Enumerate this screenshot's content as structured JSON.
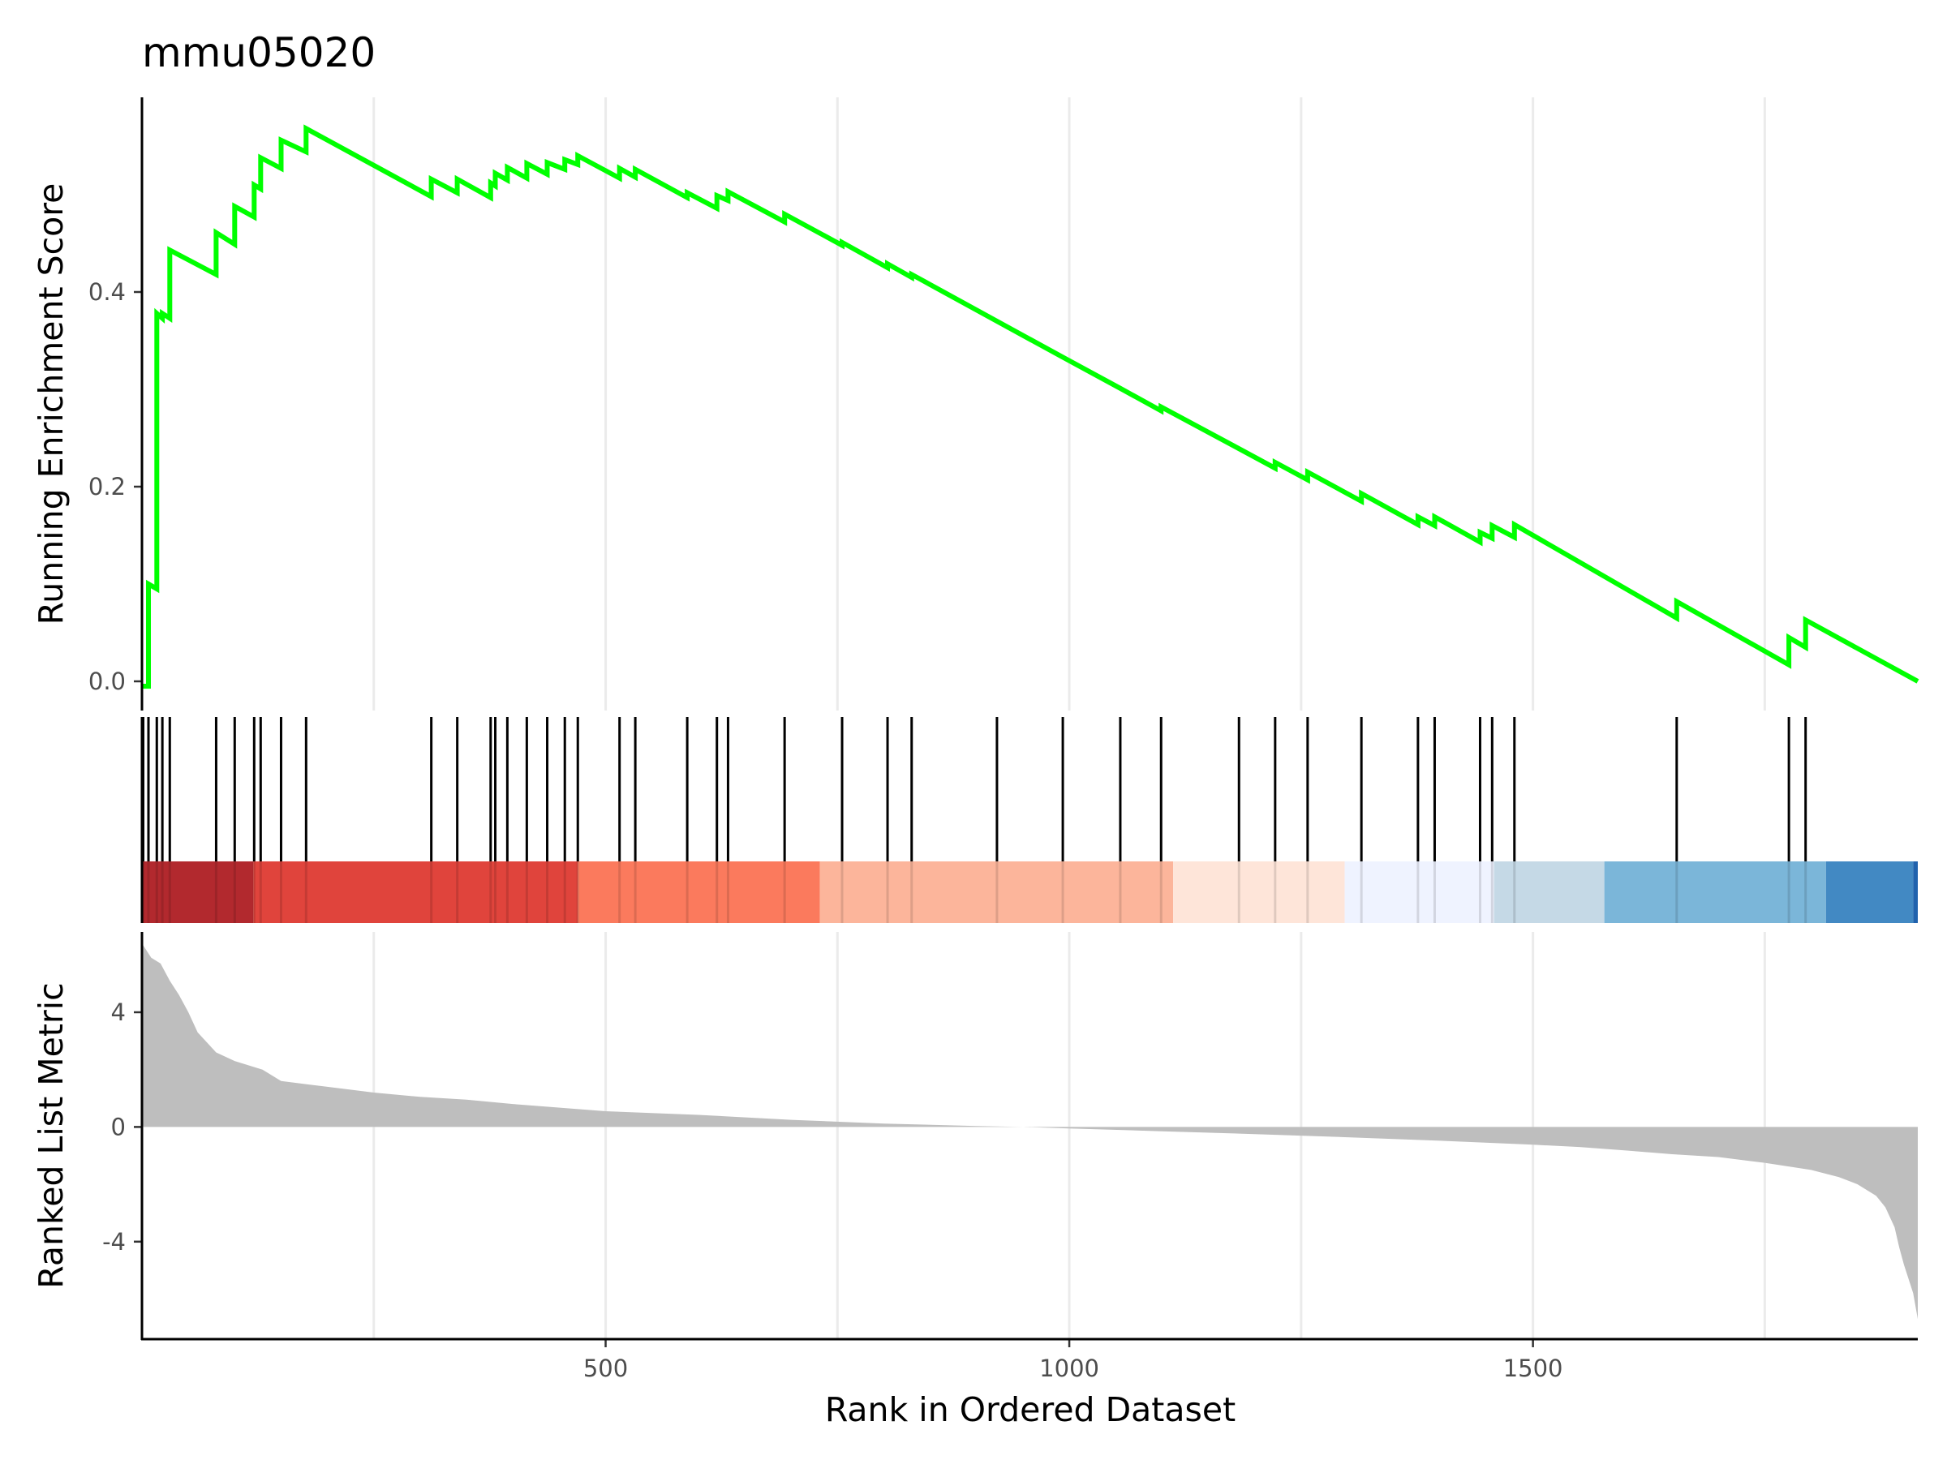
{
  "chart_data": {
    "type": "line",
    "title": "mmu05020",
    "xlabel": "Rank in Ordered Dataset",
    "xlim": [
      0,
      1915
    ],
    "x_ticks": [
      "500",
      "1000",
      "1500"
    ],
    "x_tick_values": [
      500,
      1000,
      1500
    ],
    "es_panel": {
      "ylabel": "Running Enrichment Score",
      "ylim": [
        -0.03,
        0.6
      ],
      "y_ticks": [
        "0.0",
        "0.2",
        "0.4"
      ],
      "y_tick_values": [
        0.0,
        0.2,
        0.4
      ],
      "line_color": "#00ff00",
      "series": [
        {
          "x": [
            0,
            7,
            7,
            16,
            16,
            22,
            22,
            30,
            30,
            80,
            80,
            100,
            100,
            121,
            121,
            128,
            128,
            150,
            150,
            177,
            177,
            312,
            312,
            340,
            340,
            376,
            376,
            381,
            381,
            394,
            394,
            415,
            415,
            437,
            437,
            456,
            456,
            470,
            470,
            515,
            515,
            532,
            532,
            588,
            588,
            620,
            620,
            632,
            632,
            693,
            693,
            755,
            755,
            804,
            804,
            830,
            830,
            922,
            922,
            993,
            993,
            1055,
            1055,
            1099,
            1099,
            1183,
            1183,
            1222,
            1222,
            1257,
            1257,
            1315,
            1315,
            1376,
            1376,
            1394,
            1394,
            1443,
            1443,
            1456,
            1456,
            1480,
            1480,
            1655,
            1655,
            1776,
            1776,
            1794,
            1794,
            1915
          ],
          "y": [
            -0.005,
            -0.005,
            0.1,
            0.095,
            0.378,
            0.373,
            0.378,
            0.373,
            0.443,
            0.418,
            0.461,
            0.449,
            0.488,
            0.477,
            0.51,
            0.506,
            0.538,
            0.527,
            0.556,
            0.544,
            0.568,
            0.498,
            0.516,
            0.502,
            0.516,
            0.497,
            0.512,
            0.509,
            0.522,
            0.515,
            0.528,
            0.517,
            0.532,
            0.521,
            0.533,
            0.526,
            0.536,
            0.531,
            0.54,
            0.517,
            0.527,
            0.518,
            0.526,
            0.497,
            0.502,
            0.486,
            0.499,
            0.494,
            0.503,
            0.472,
            0.48,
            0.448,
            0.451,
            0.425,
            0.429,
            0.415,
            0.418,
            0.37,
            0.37,
            0.333,
            0.333,
            0.301,
            0.301,
            0.278,
            0.282,
            0.239,
            0.239,
            0.219,
            0.225,
            0.207,
            0.215,
            0.185,
            0.193,
            0.161,
            0.169,
            0.16,
            0.169,
            0.143,
            0.153,
            0.147,
            0.16,
            0.148,
            0.161,
            0.065,
            0.082,
            0.017,
            0.045,
            0.035,
            0.063,
            0.0
          ]
        }
      ]
    },
    "hits_panel": {
      "hit_positions": [
        0,
        7,
        16,
        22,
        30,
        80,
        100,
        121,
        128,
        150,
        177,
        312,
        340,
        376,
        381,
        394,
        415,
        437,
        456,
        470,
        515,
        532,
        588,
        620,
        632,
        693,
        755,
        804,
        830,
        922,
        993,
        1055,
        1099,
        1183,
        1222,
        1257,
        1315,
        1376,
        1394,
        1443,
        1456,
        1480,
        1655,
        1776,
        1794
      ],
      "color_bands": [
        {
          "start": 0,
          "end": 120,
          "color": "#b2292e"
        },
        {
          "start": 120,
          "end": 470,
          "color": "#e0443c"
        },
        {
          "start": 470,
          "end": 731,
          "color": "#fb7a5d"
        },
        {
          "start": 731,
          "end": 1112,
          "color": "#fcb59b"
        },
        {
          "start": 1112,
          "end": 1297,
          "color": "#fee5d9"
        },
        {
          "start": 1297,
          "end": 1458,
          "color": "#eff3ff"
        },
        {
          "start": 1458,
          "end": 1577,
          "color": "#c5d9e6"
        },
        {
          "start": 1577,
          "end": 1816,
          "color": "#7bb6d9"
        },
        {
          "start": 1816,
          "end": 1910,
          "color": "#4289c3"
        },
        {
          "start": 1910,
          "end": 1915,
          "color": "#2062ad"
        }
      ]
    },
    "metric_panel": {
      "ylabel": "Ranked List Metric",
      "ylim": [
        -7.4,
        6.8
      ],
      "y_ticks": [
        "4",
        "0",
        "-4"
      ],
      "y_tick_values": [
        4,
        0,
        -4
      ],
      "fill_color": "#bebebe",
      "series": [
        {
          "x": [
            0,
            10,
            20,
            30,
            40,
            50,
            60,
            80,
            100,
            130,
            150,
            200,
            250,
            300,
            350,
            400,
            500,
            600,
            700,
            800,
            900,
            950,
            1000,
            1100,
            1200,
            1300,
            1400,
            1500,
            1550,
            1600,
            1650,
            1700,
            1750,
            1800,
            1830,
            1850,
            1870,
            1880,
            1890,
            1895,
            1900,
            1905,
            1910,
            1915
          ],
          "y": [
            6.4,
            5.9,
            5.7,
            5.1,
            4.6,
            4.0,
            3.3,
            2.6,
            2.3,
            2.0,
            1.6,
            1.4,
            1.2,
            1.05,
            0.95,
            0.8,
            0.55,
            0.42,
            0.25,
            0.12,
            0.03,
            0.0,
            -0.05,
            -0.15,
            -0.25,
            -0.36,
            -0.48,
            -0.62,
            -0.7,
            -0.82,
            -0.95,
            -1.05,
            -1.25,
            -1.5,
            -1.75,
            -2.0,
            -2.4,
            -2.8,
            -3.5,
            -4.2,
            -4.8,
            -5.3,
            -5.8,
            -6.7
          ]
        }
      ]
    }
  }
}
